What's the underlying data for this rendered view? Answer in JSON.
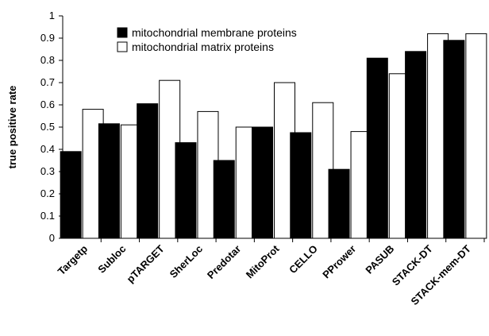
{
  "chart_data": {
    "type": "bar",
    "title": "",
    "xlabel": "",
    "ylabel": "true positive rate",
    "ylim": [
      0,
      1
    ],
    "yticks": [
      "0",
      "0.1",
      "0.2",
      "0.3",
      "0.4",
      "0.5",
      "0.6",
      "0.7",
      "0.8",
      "0.9",
      "1"
    ],
    "grid": false,
    "legend_position": "top-left",
    "categories": [
      "Targetp",
      "Subloc",
      "pTARGET",
      "SherLoc",
      "Predotar",
      "MitoProt",
      "CELLO",
      "PPrower",
      "PASUB",
      "STACK-DT",
      "STACK-mem-DT"
    ],
    "series": [
      {
        "name": "mitochondrial membrane proteins",
        "color": "#000000",
        "values": [
          0.39,
          0.515,
          0.605,
          0.43,
          0.35,
          0.5,
          0.475,
          0.31,
          0.81,
          0.84,
          0.89
        ]
      },
      {
        "name": "mitochondrial matrix proteins",
        "color": "#ffffff",
        "values": [
          0.58,
          0.51,
          0.71,
          0.57,
          0.5,
          0.7,
          0.61,
          0.48,
          0.74,
          0.92,
          0.92
        ]
      }
    ]
  }
}
